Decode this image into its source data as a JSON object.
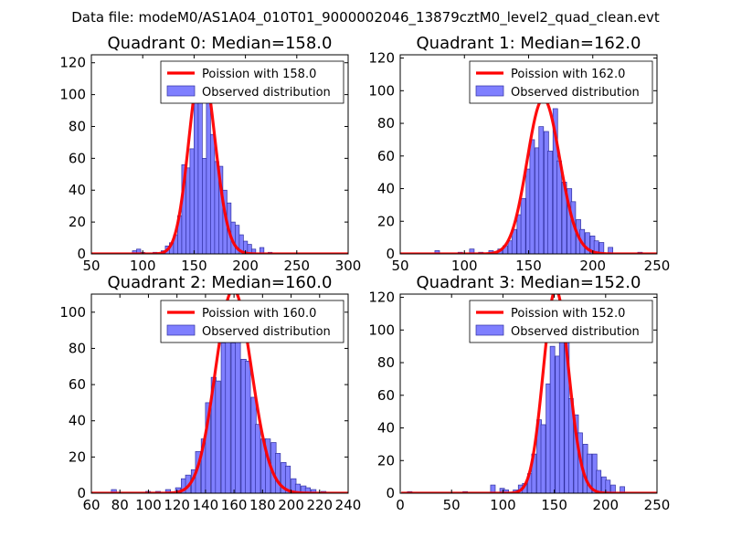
{
  "suptitle": "Data file: modeM0/AS1A04_010T01_9000002046_13879cztM0_level2_quad_clean.evt",
  "colors": {
    "poisson": "#ff0000",
    "bars": "#7f7fff",
    "bar_edge": "#3030a0",
    "axes": "#000000"
  },
  "chart_data": [
    {
      "type": "bar",
      "title": "Quadrant 0: Median=158.0",
      "median": 158.0,
      "xlim": [
        50,
        300
      ],
      "ylim": [
        0,
        125
      ],
      "xticks": [
        50,
        100,
        150,
        200,
        250,
        300
      ],
      "yticks": [
        0,
        20,
        40,
        60,
        80,
        100,
        120
      ],
      "legend": [
        "Poission with 158.0",
        "Observed distribution"
      ],
      "bin_width": 4,
      "bins": [
        [
          90,
          2
        ],
        [
          94,
          3
        ],
        [
          98,
          1
        ],
        [
          110,
          1
        ],
        [
          118,
          2
        ],
        [
          122,
          5
        ],
        [
          126,
          7
        ],
        [
          130,
          12
        ],
        [
          134,
          24
        ],
        [
          138,
          56
        ],
        [
          142,
          54
        ],
        [
          146,
          66
        ],
        [
          150,
          104
        ],
        [
          154,
          111
        ],
        [
          158,
          60
        ],
        [
          162,
          103
        ],
        [
          166,
          75
        ],
        [
          170,
          58
        ],
        [
          174,
          55
        ],
        [
          178,
          40
        ],
        [
          182,
          32
        ],
        [
          186,
          20
        ],
        [
          190,
          18
        ],
        [
          194,
          12
        ],
        [
          198,
          8
        ],
        [
          202,
          6
        ],
        [
          206,
          3
        ],
        [
          214,
          4
        ],
        [
          222,
          1
        ]
      ]
    },
    {
      "type": "bar",
      "title": "Quadrant 1: Median=162.0",
      "median": 162.0,
      "xlim": [
        50,
        250
      ],
      "ylim": [
        0,
        122
      ],
      "xticks": [
        50,
        100,
        150,
        200,
        250
      ],
      "yticks": [
        0,
        20,
        40,
        60,
        80,
        100,
        120
      ],
      "legend": [
        "Poission with 162.0",
        "Observed distribution"
      ],
      "bin_width": 3.6,
      "bins": [
        [
          77,
          2
        ],
        [
          95,
          1
        ],
        [
          104,
          3
        ],
        [
          111,
          1
        ],
        [
          119,
          2
        ],
        [
          126,
          3
        ],
        [
          130,
          5
        ],
        [
          134,
          8
        ],
        [
          137,
          15
        ],
        [
          141,
          24
        ],
        [
          144,
          34
        ],
        [
          148,
          52
        ],
        [
          151,
          70
        ],
        [
          155,
          65
        ],
        [
          158,
          78
        ],
        [
          162,
          75
        ],
        [
          165,
          63
        ],
        [
          169,
          89
        ],
        [
          172,
          57
        ],
        [
          176,
          44
        ],
        [
          180,
          40
        ],
        [
          183,
          32
        ],
        [
          187,
          21
        ],
        [
          190,
          15
        ],
        [
          194,
          13
        ],
        [
          198,
          11
        ],
        [
          201,
          8
        ],
        [
          205,
          7
        ],
        [
          212,
          4
        ],
        [
          235,
          1
        ]
      ]
    },
    {
      "type": "bar",
      "title": "Quadrant 2: Median=160.0",
      "median": 160.0,
      "xlim": [
        60,
        240
      ],
      "ylim": [
        0,
        110
      ],
      "xticks": [
        60,
        80,
        100,
        120,
        140,
        160,
        180,
        200,
        220,
        240
      ],
      "yticks": [
        0,
        20,
        40,
        60,
        80,
        100
      ],
      "legend": [
        "Poission with 160.0",
        "Observed distribution"
      ],
      "bin_width": 3.5,
      "bins": [
        [
          74,
          2
        ],
        [
          98,
          1
        ],
        [
          105,
          1
        ],
        [
          112,
          2
        ],
        [
          119,
          3
        ],
        [
          123,
          8
        ],
        [
          126,
          10
        ],
        [
          130,
          13
        ],
        [
          133,
          23
        ],
        [
          137,
          30
        ],
        [
          140,
          50
        ],
        [
          144,
          64
        ],
        [
          147,
          62
        ],
        [
          151,
          83
        ],
        [
          154,
          97
        ],
        [
          158,
          83
        ],
        [
          161,
          84
        ],
        [
          165,
          74
        ],
        [
          168,
          73
        ],
        [
          172,
          53
        ],
        [
          175,
          38
        ],
        [
          179,
          30
        ],
        [
          182,
          30
        ],
        [
          186,
          28
        ],
        [
          189,
          22
        ],
        [
          193,
          17
        ],
        [
          196,
          15
        ],
        [
          200,
          8
        ],
        [
          203,
          5
        ],
        [
          207,
          4
        ],
        [
          210,
          3
        ],
        [
          214,
          2
        ],
        [
          221,
          1
        ]
      ]
    },
    {
      "type": "bar",
      "title": "Quadrant 3: Median=152.0",
      "median": 152.0,
      "xlim": [
        0,
        250
      ],
      "ylim": [
        0,
        122
      ],
      "xticks": [
        0,
        50,
        100,
        150,
        200,
        250
      ],
      "yticks": [
        0,
        20,
        40,
        60,
        80,
        100,
        120
      ],
      "legend": [
        "Poission with 152.0",
        "Observed distribution"
      ],
      "bin_width": 4.5,
      "bins": [
        [
          7,
          1
        ],
        [
          61,
          1
        ],
        [
          88,
          5
        ],
        [
          97,
          3
        ],
        [
          101,
          2
        ],
        [
          110,
          2
        ],
        [
          115,
          5
        ],
        [
          119,
          6
        ],
        [
          124,
          12
        ],
        [
          128,
          24
        ],
        [
          133,
          45
        ],
        [
          137,
          42
        ],
        [
          142,
          67
        ],
        [
          146,
          90
        ],
        [
          151,
          84
        ],
        [
          155,
          110
        ],
        [
          160,
          95
        ],
        [
          164,
          58
        ],
        [
          169,
          48
        ],
        [
          173,
          37
        ],
        [
          178,
          30
        ],
        [
          182,
          24
        ],
        [
          187,
          24
        ],
        [
          191,
          14
        ],
        [
          196,
          10
        ],
        [
          200,
          8
        ],
        [
          205,
          5
        ],
        [
          214,
          4
        ]
      ]
    }
  ]
}
